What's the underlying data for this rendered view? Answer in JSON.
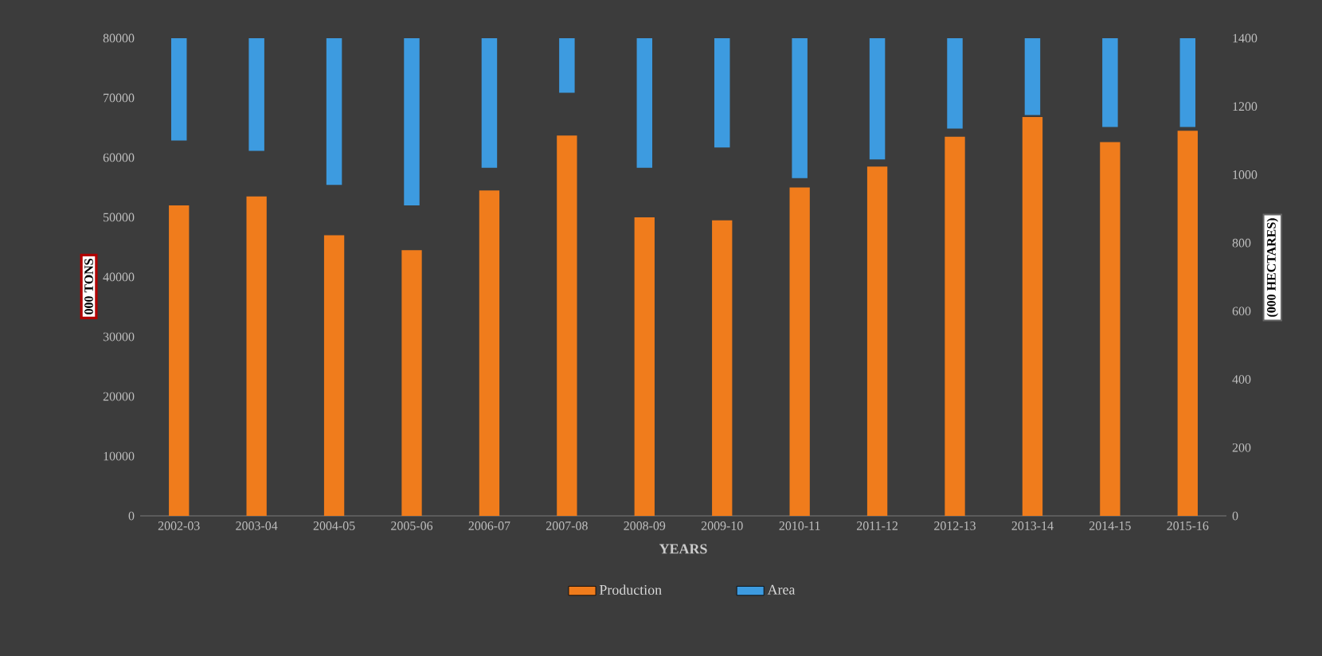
{
  "chart_data": {
    "type": "bar",
    "xlabel": "YEARS",
    "ylabel": "000 TONS",
    "y2label": "(000 HECTARES)",
    "categories": [
      "2002-03",
      "2003-04",
      "2004-05",
      "2005-06",
      "2006-07",
      "2007-08",
      "2008-09",
      "2009-10",
      "2010-11",
      "2011-12",
      "2012-13",
      "2013-14",
      "2014-15",
      "2015-16"
    ],
    "series": [
      {
        "name": "Production",
        "color": "#f07c1c",
        "values": [
          52000,
          53500,
          47000,
          44500,
          54500,
          63700,
          50000,
          49500,
          55000,
          58500,
          63500,
          66800,
          62600,
          64500
        ]
      },
      {
        "name": "Area",
        "type": "bar",
        "axis": "y2",
        "color": "#3d9be0",
        "base": [
          1100,
          1070,
          970,
          910,
          1020,
          1240,
          1020,
          1080,
          990,
          1045,
          1135,
          1175,
          1140,
          1140
        ],
        "values": [
          300,
          330,
          430,
          490,
          380,
          160,
          380,
          320,
          410,
          355,
          265,
          225,
          260,
          260
        ]
      }
    ],
    "ylim": [
      0,
      80000
    ],
    "yticks": [
      0,
      10000,
      20000,
      30000,
      40000,
      50000,
      60000,
      70000,
      80000
    ],
    "y2lim": [
      0,
      1400
    ],
    "y2ticks": [
      0,
      200,
      400,
      600,
      800,
      1000,
      1200,
      1400
    ],
    "legend": "bottom"
  }
}
